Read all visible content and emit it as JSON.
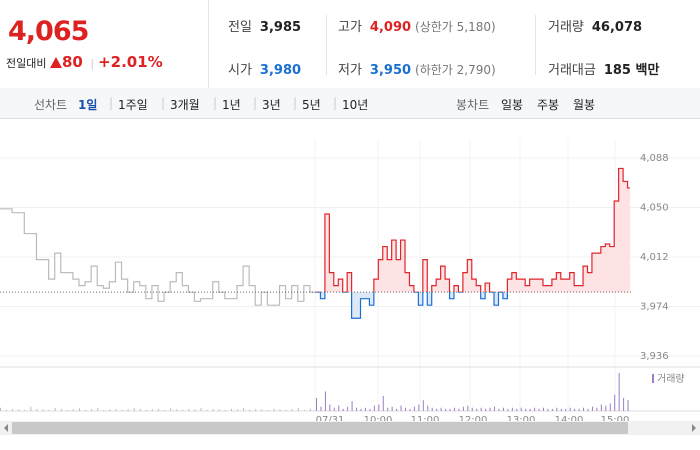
{
  "header": {
    "price": "4,065",
    "change_label": "전일대비",
    "change": "80",
    "change_rate": "+2.01%"
  },
  "stats": [
    {
      "label": "전일",
      "value": "3,985",
      "color": "#222222"
    },
    {
      "label": "고가",
      "value": "4,090",
      "color": "#dd2222",
      "note": "(상한가 5,180)"
    },
    {
      "label": "거래량",
      "value": "46,078",
      "color": "#222222"
    },
    {
      "label": "시가",
      "value": "3,980",
      "color": "#1a6fd1"
    },
    {
      "label": "저가",
      "value": "3,950",
      "color": "#1a6fd1",
      "note": "(하한가 2,790)"
    },
    {
      "label": "거래대금",
      "value": "185 백만",
      "color": "#222222"
    }
  ],
  "tabs": {
    "line_label": "선차트",
    "periods": [
      "1일",
      "1주일",
      "3개월",
      "1년",
      "3년",
      "5년",
      "10년"
    ],
    "active": "1일",
    "candle_label": "봉차트",
    "candles": [
      "일봉",
      "주봉",
      "월봉"
    ]
  },
  "chart_data": {
    "type": "line",
    "ylim": [
      3936,
      4088
    ],
    "yticks": [
      {
        "value": 4088,
        "label": "4,088"
      },
      {
        "value": 4050,
        "label": "4,050"
      },
      {
        "value": 4012,
        "label": "4,012"
      },
      {
        "value": 3974,
        "label": "3,974"
      },
      {
        "value": 3936,
        "label": "3,936"
      }
    ],
    "previous_close": 3985,
    "x_labels": [
      "07/31",
      "10:00",
      "11:00",
      "12:00",
      "13:00",
      "14:00",
      "15:00"
    ],
    "volume_legend": "거래량",
    "series": [
      {
        "color": "#bbbbbb",
        "volume_color": "#bbbbbb",
        "values": [
          4049,
          4049,
          4046,
          4046,
          4030,
          4030,
          4010,
          4010,
          3995,
          4015,
          4000,
          4000,
          3995,
          3990,
          3993,
          4005,
          3990,
          3988,
          3993,
          4008,
          3995,
          3985,
          3993,
          3990,
          3980,
          3990,
          3978,
          3985,
          3993,
          4000,
          3990,
          3985,
          3978,
          3980,
          3980,
          3993,
          3985,
          3980,
          3980,
          3990,
          4005,
          3990,
          3975,
          3985,
          3975,
          3975,
          3990,
          3980,
          3990,
          3978,
          3990,
          3985
        ],
        "volume": [
          300,
          100,
          200,
          150,
          100,
          400,
          200,
          150,
          100,
          300,
          200,
          100,
          150,
          250,
          100,
          200,
          300,
          100,
          150,
          200,
          100,
          150,
          300,
          200,
          100,
          150,
          200,
          100,
          250,
          150,
          100,
          200,
          150,
          300,
          100,
          200,
          150,
          100,
          200,
          150,
          300,
          100,
          200,
          150,
          100,
          200,
          150,
          100,
          200,
          300,
          100,
          200
        ]
      },
      {
        "color": "#e0252b",
        "down_color": "#1a6fd1",
        "volume_color": "#9b7fc4",
        "values": [
          3985,
          3980,
          4045,
          4000,
          3990,
          3995,
          3985,
          4000,
          3965,
          3965,
          3980,
          3980,
          3975,
          3995,
          4010,
          4020,
          4010,
          4025,
          4010,
          4025,
          4000,
          3990,
          3985,
          3975,
          4010,
          3975,
          3990,
          3995,
          4005,
          3995,
          3980,
          3990,
          3985,
          4000,
          4010,
          3995,
          3990,
          3980,
          3992,
          3985,
          3975,
          3985,
          3980,
          3995,
          4000,
          3995,
          3995,
          3990,
          3995,
          3995,
          3995,
          3990,
          3990,
          3995,
          4000,
          3995,
          3995,
          4000,
          3990,
          3990,
          4005,
          4000,
          4015,
          4015,
          4020,
          4022,
          4020,
          4055,
          4080,
          4070,
          4065
        ],
        "volume": [
          1200,
          400,
          1800,
          600,
          300,
          500,
          200,
          400,
          900,
          300,
          200,
          300,
          200,
          500,
          600,
          1400,
          300,
          400,
          200,
          500,
          300,
          200,
          400,
          600,
          1000,
          500,
          300,
          200,
          300,
          200,
          200,
          300,
          200,
          400,
          500,
          300,
          200,
          300,
          200,
          300,
          400,
          200,
          300,
          200,
          300,
          200,
          300,
          200,
          200,
          300,
          200,
          300,
          200,
          200,
          300,
          200,
          200,
          300,
          200,
          200,
          300,
          200,
          400,
          300,
          600,
          500,
          700,
          1500,
          3500,
          1200,
          1000
        ]
      }
    ]
  }
}
